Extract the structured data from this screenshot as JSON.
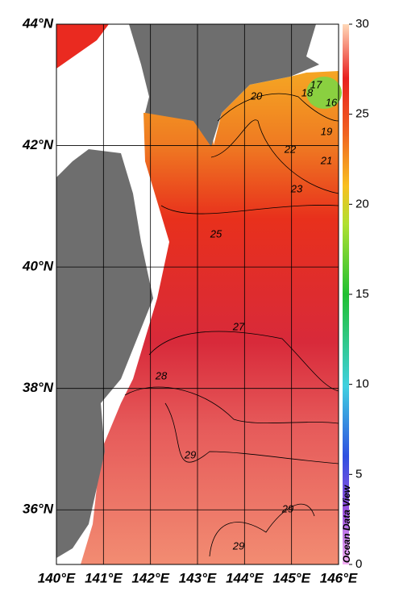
{
  "map": {
    "lonlim": [
      140,
      146
    ],
    "latlim": [
      35.1,
      44
    ],
    "lon_ticks": [
      {
        "value": 140,
        "label": "140°E"
      },
      {
        "value": 141,
        "label": "141°E"
      },
      {
        "value": 142,
        "label": "142°E"
      },
      {
        "value": 143,
        "label": "143°E"
      },
      {
        "value": 144,
        "label": "144°E"
      },
      {
        "value": 145,
        "label": "145°E"
      },
      {
        "value": 146,
        "label": "146°E"
      }
    ],
    "lat_ticks": [
      {
        "value": 36,
        "label": "36°N"
      },
      {
        "value": 38,
        "label": "38°N"
      },
      {
        "value": 40,
        "label": "40°N"
      },
      {
        "value": 42,
        "label": "42°N"
      },
      {
        "value": 44,
        "label": "44°N"
      }
    ],
    "colorbar": {
      "lim": [
        0,
        30
      ],
      "ticks": [
        0,
        5,
        10,
        15,
        20,
        25,
        30
      ]
    },
    "contour_labels": [
      20,
      18,
      17,
      16,
      19,
      21,
      22,
      23,
      25,
      27,
      28,
      29,
      29,
      29
    ],
    "watermark": "Ocean Data View"
  }
}
